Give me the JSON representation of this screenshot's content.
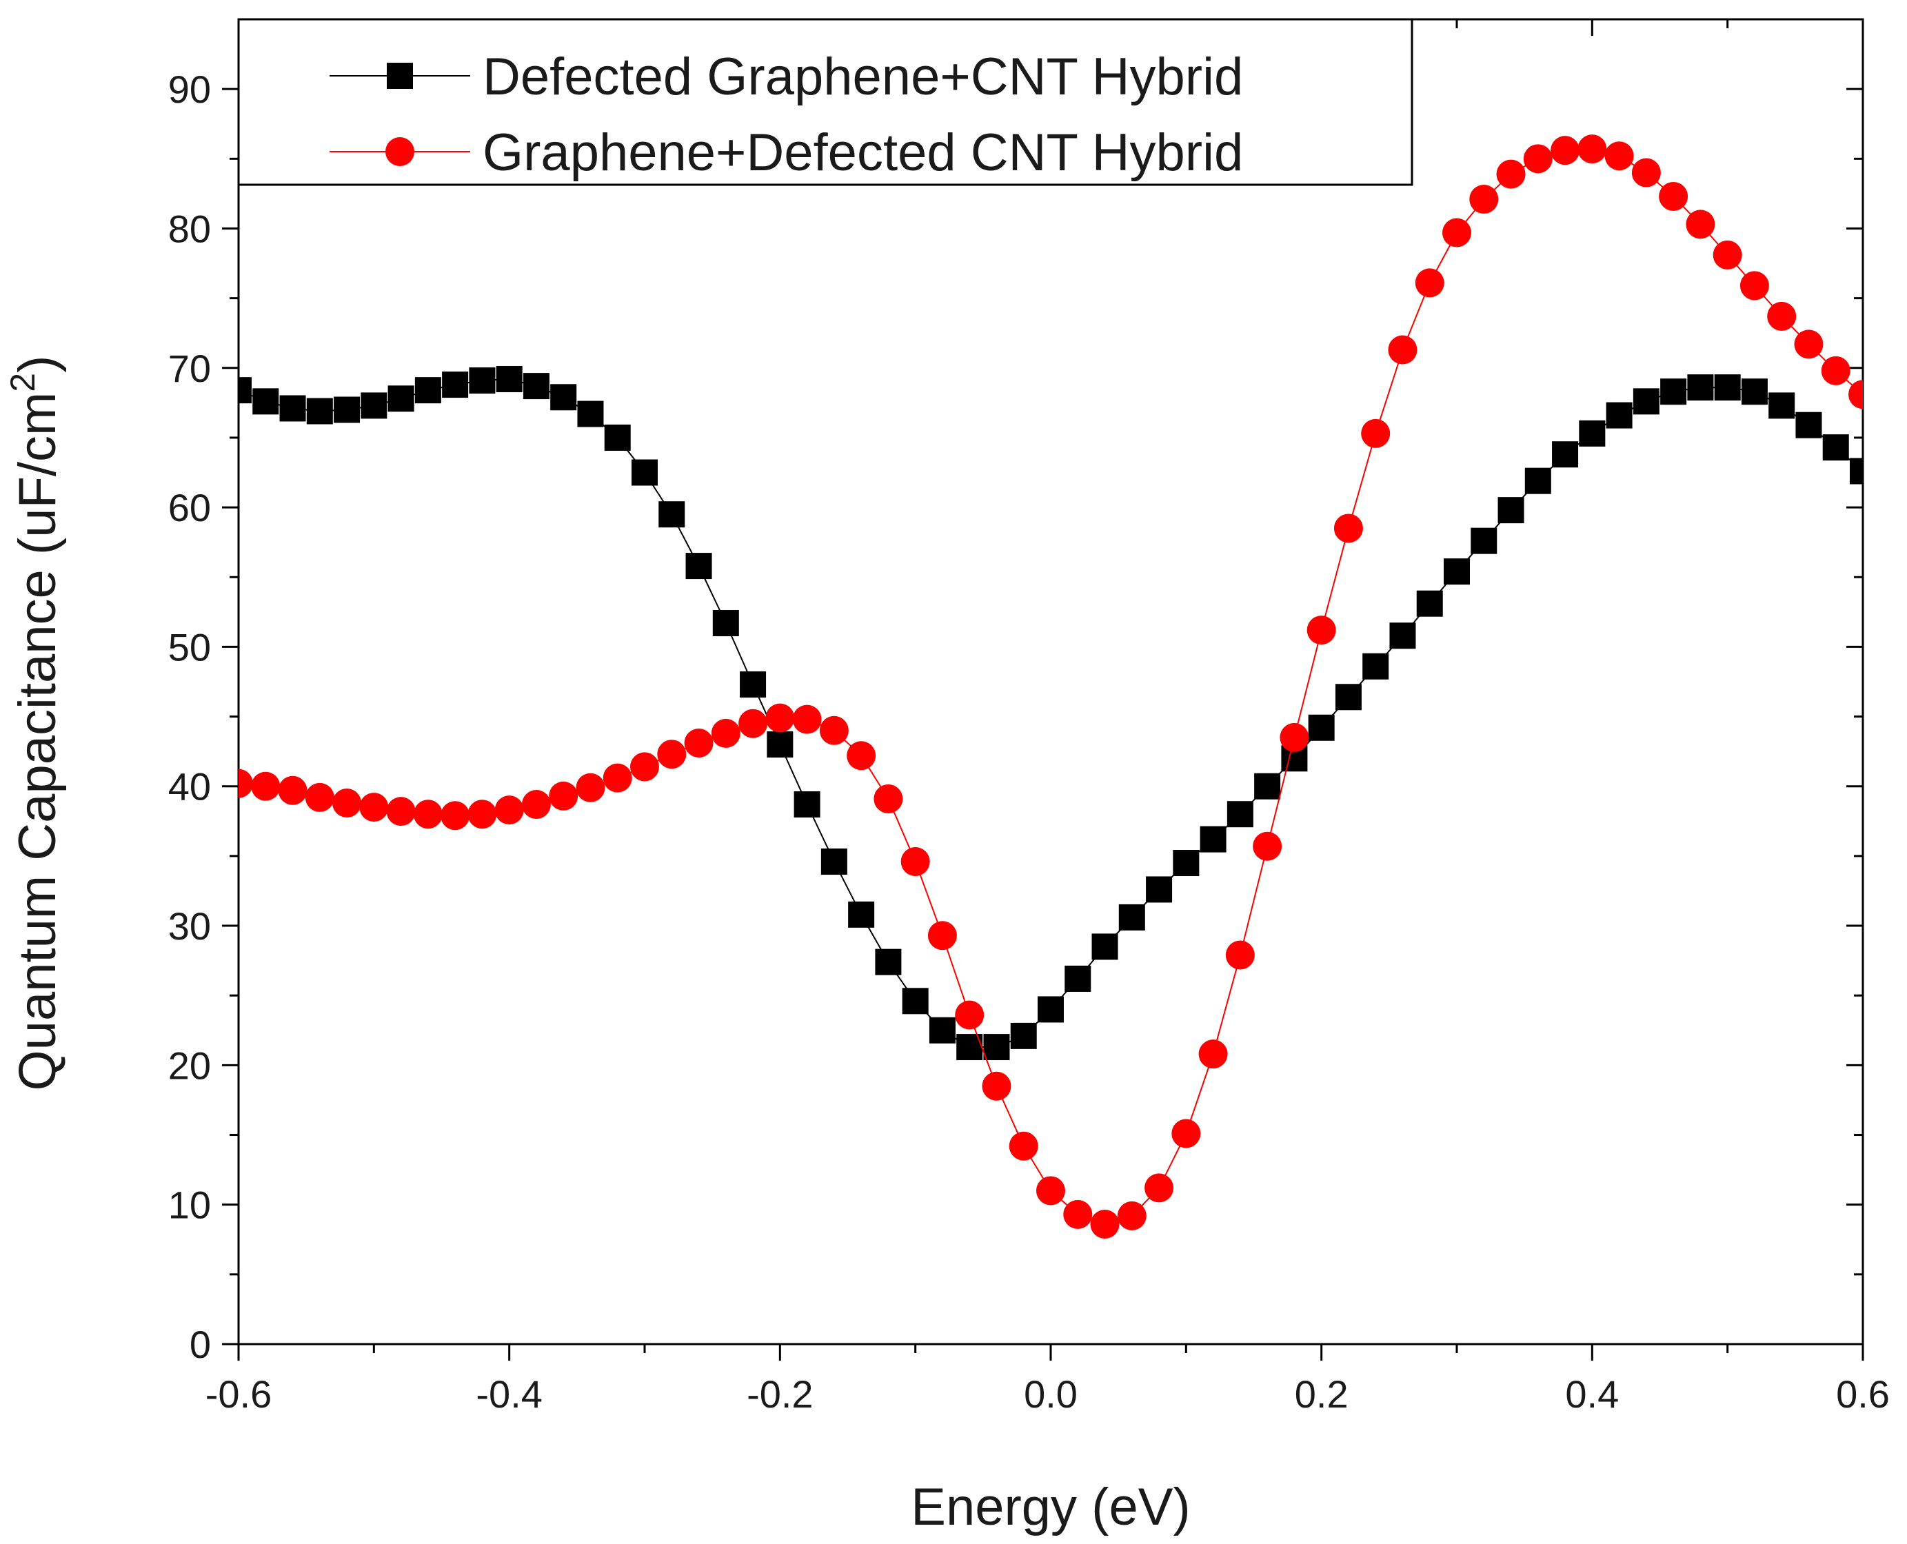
{
  "chart_data": {
    "type": "line",
    "title": "",
    "xlabel": "Energy (eV)",
    "ylabel_main": "Quantum Capacitance (uF/cm",
    "ylabel_sup": "2",
    "ylabel_tail": ")",
    "xlim": [
      -0.6,
      0.6
    ],
    "ylim": [
      0,
      95
    ],
    "xticks": [
      "-0.6",
      "-0.4",
      "-0.2",
      "0.0",
      "0.2",
      "0.4",
      "0.6"
    ],
    "yticks": [
      "0",
      "10",
      "20",
      "30",
      "40",
      "50",
      "60",
      "70",
      "80",
      "90"
    ],
    "legend_position": "top-left",
    "series": [
      {
        "name": "Defected Graphene+CNT Hybrid",
        "color": "#000000",
        "marker": "square",
        "x": [
          -0.6,
          -0.58,
          -0.56,
          -0.54,
          -0.52,
          -0.5,
          -0.48,
          -0.46,
          -0.44,
          -0.42,
          -0.4,
          -0.38,
          -0.36,
          -0.34,
          -0.32,
          -0.3,
          -0.28,
          -0.26,
          -0.24,
          -0.22,
          -0.2,
          -0.18,
          -0.16,
          -0.14,
          -0.12,
          -0.1,
          -0.08,
          -0.06,
          -0.04,
          -0.02,
          0.0,
          0.02,
          0.04,
          0.06,
          0.08,
          0.1,
          0.12,
          0.14,
          0.16,
          0.18,
          0.2,
          0.22,
          0.24,
          0.26,
          0.28,
          0.3,
          0.32,
          0.34,
          0.36,
          0.38,
          0.4,
          0.42,
          0.44,
          0.46,
          0.48,
          0.5,
          0.52,
          0.54,
          0.56,
          0.58,
          0.6
        ],
        "values": [
          68.4,
          67.6,
          67.1,
          66.9,
          67.0,
          67.3,
          67.8,
          68.4,
          68.8,
          69.1,
          69.2,
          68.7,
          67.9,
          66.7,
          65.0,
          62.5,
          59.5,
          55.8,
          51.7,
          47.3,
          43.0,
          38.7,
          34.6,
          30.8,
          27.4,
          24.6,
          22.5,
          21.3,
          21.3,
          22.1,
          24.0,
          26.2,
          28.5,
          30.6,
          32.6,
          34.5,
          36.2,
          38.0,
          40.0,
          42.0,
          44.2,
          46.4,
          48.6,
          50.8,
          53.1,
          55.4,
          57.6,
          59.8,
          61.9,
          63.8,
          65.3,
          66.6,
          67.6,
          68.3,
          68.6,
          68.6,
          68.3,
          67.3,
          65.9,
          64.3,
          62.6
        ]
      },
      {
        "name": "Graphene+Defected CNT Hybrid",
        "color": "#ff0000",
        "marker": "circle",
        "x": [
          -0.6,
          -0.58,
          -0.56,
          -0.54,
          -0.52,
          -0.5,
          -0.48,
          -0.46,
          -0.44,
          -0.42,
          -0.4,
          -0.38,
          -0.36,
          -0.34,
          -0.32,
          -0.3,
          -0.28,
          -0.26,
          -0.24,
          -0.22,
          -0.2,
          -0.18,
          -0.16,
          -0.14,
          -0.12,
          -0.1,
          -0.08,
          -0.06,
          -0.04,
          -0.02,
          0.0,
          0.02,
          0.04,
          0.06,
          0.08,
          0.1,
          0.12,
          0.14,
          0.16,
          0.18,
          0.2,
          0.22,
          0.24,
          0.26,
          0.28,
          0.3,
          0.32,
          0.34,
          0.36,
          0.38,
          0.4,
          0.42,
          0.44,
          0.46,
          0.48,
          0.5,
          0.52,
          0.54,
          0.56,
          0.58,
          0.6
        ],
        "values": [
          40.2,
          40.0,
          39.7,
          39.2,
          38.8,
          38.5,
          38.2,
          38.0,
          37.9,
          38.0,
          38.3,
          38.7,
          39.3,
          39.9,
          40.6,
          41.4,
          42.3,
          43.1,
          43.8,
          44.5,
          44.9,
          44.8,
          44.0,
          42.2,
          39.1,
          34.6,
          29.3,
          23.6,
          18.5,
          14.2,
          11.0,
          9.3,
          8.6,
          9.2,
          11.2,
          15.1,
          20.8,
          27.9,
          35.7,
          43.5,
          51.2,
          58.5,
          65.3,
          71.3,
          76.1,
          79.7,
          82.1,
          83.9,
          85.0,
          85.6,
          85.7,
          85.2,
          84.0,
          82.3,
          80.3,
          78.1,
          75.9,
          73.7,
          71.7,
          69.8,
          68.1
        ]
      }
    ]
  }
}
